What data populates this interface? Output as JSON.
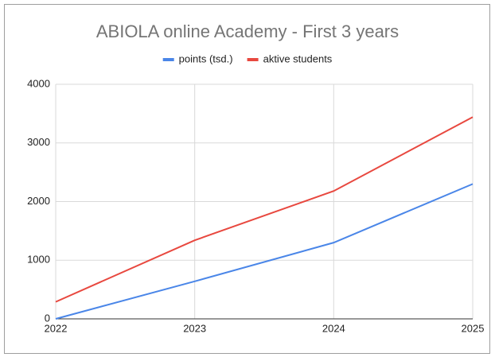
{
  "chart_data": {
    "type": "line",
    "title": "ABIOLA online Academy - First 3 years",
    "x": [
      2022,
      2023,
      2024,
      2025
    ],
    "series": [
      {
        "name": "points (tsd.)",
        "color": "#4a86e8",
        "values": [
          0,
          640,
          1300,
          2300
        ]
      },
      {
        "name": "aktive students",
        "color": "#e8483f",
        "values": [
          290,
          1340,
          2180,
          3440
        ]
      }
    ],
    "xlim": [
      2022,
      2025
    ],
    "xticks": [
      2022,
      2023,
      2024,
      2025
    ],
    "ylim": [
      0,
      4000
    ],
    "yticks": [
      0,
      1000,
      2000,
      3000,
      4000
    ],
    "grid": true,
    "legend": "top"
  }
}
